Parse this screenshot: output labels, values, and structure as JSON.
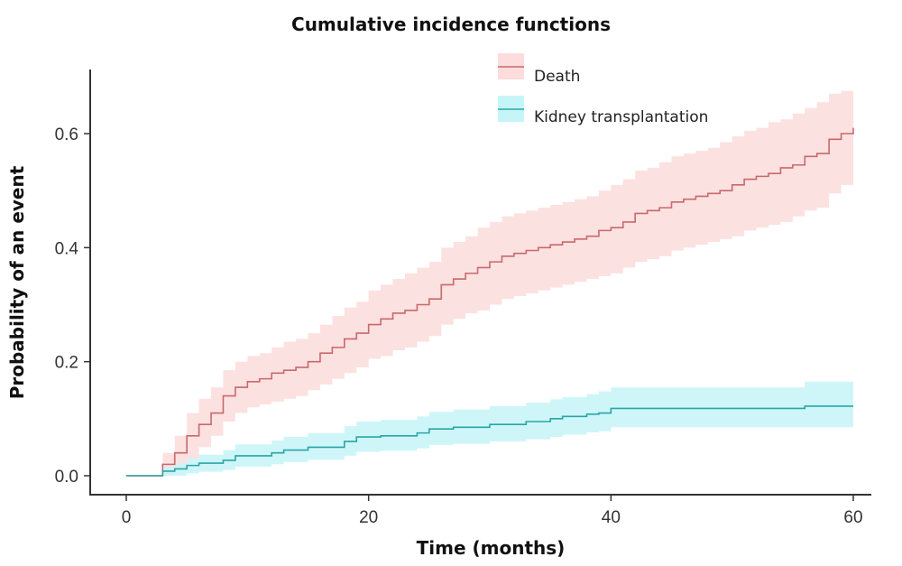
{
  "chart_data": {
    "type": "line",
    "subtype": "step",
    "title": "Cumulative incidence functions",
    "xlabel": "Time (months)",
    "ylabel": "Probability of an event",
    "xlim": [
      -3,
      62
    ],
    "ylim": [
      -0.04,
      0.7
    ],
    "xticks": [
      0,
      20,
      40,
      60
    ],
    "xtick_labels": [
      "0",
      "20",
      "40",
      "60"
    ],
    "yticks": [
      0.0,
      0.2,
      0.4,
      0.6
    ],
    "ytick_labels": [
      "0.0",
      "0.2",
      "0.4",
      "0.6"
    ],
    "grid": false,
    "legend": {
      "position": "top-right",
      "entries": [
        "Death",
        "Kidney transplantation"
      ]
    },
    "series": [
      {
        "name": "Death",
        "color": "#c8696b",
        "band_color": "#fcdcdc",
        "x": [
          0,
          3,
          4,
          5,
          6,
          7,
          8,
          9,
          10,
          11,
          12,
          13,
          14,
          15,
          16,
          17,
          18,
          19,
          20,
          21,
          22,
          23,
          24,
          25,
          26,
          27,
          28,
          29,
          30,
          31,
          32,
          33,
          34,
          35,
          36,
          37,
          38,
          39,
          40,
          41,
          42,
          43,
          44,
          45,
          46,
          47,
          48,
          49,
          50,
          51,
          52,
          53,
          54,
          55,
          56,
          57,
          58,
          59,
          60
        ],
        "y": [
          0,
          0.02,
          0.04,
          0.07,
          0.09,
          0.11,
          0.14,
          0.155,
          0.165,
          0.17,
          0.18,
          0.185,
          0.19,
          0.2,
          0.215,
          0.225,
          0.24,
          0.25,
          0.265,
          0.275,
          0.285,
          0.29,
          0.3,
          0.31,
          0.335,
          0.345,
          0.355,
          0.365,
          0.375,
          0.385,
          0.39,
          0.395,
          0.4,
          0.405,
          0.41,
          0.415,
          0.42,
          0.43,
          0.435,
          0.445,
          0.46,
          0.465,
          0.47,
          0.48,
          0.485,
          0.49,
          0.495,
          0.5,
          0.51,
          0.52,
          0.525,
          0.53,
          0.54,
          0.545,
          0.56,
          0.565,
          0.59,
          0.6,
          0.61
        ],
        "lower": [
          0,
          0.0,
          0.01,
          0.03,
          0.05,
          0.07,
          0.095,
          0.11,
          0.12,
          0.125,
          0.13,
          0.135,
          0.14,
          0.15,
          0.16,
          0.17,
          0.18,
          0.19,
          0.205,
          0.21,
          0.22,
          0.225,
          0.235,
          0.245,
          0.265,
          0.275,
          0.285,
          0.29,
          0.3,
          0.31,
          0.315,
          0.32,
          0.325,
          0.33,
          0.335,
          0.34,
          0.345,
          0.35,
          0.355,
          0.365,
          0.375,
          0.38,
          0.385,
          0.395,
          0.4,
          0.405,
          0.41,
          0.415,
          0.42,
          0.43,
          0.435,
          0.44,
          0.445,
          0.455,
          0.465,
          0.47,
          0.495,
          0.51,
          0.52
        ],
        "upper": [
          0,
          0.04,
          0.07,
          0.11,
          0.135,
          0.155,
          0.185,
          0.2,
          0.21,
          0.215,
          0.225,
          0.235,
          0.24,
          0.25,
          0.265,
          0.28,
          0.295,
          0.305,
          0.325,
          0.335,
          0.345,
          0.355,
          0.365,
          0.375,
          0.4,
          0.41,
          0.42,
          0.435,
          0.445,
          0.455,
          0.46,
          0.465,
          0.47,
          0.475,
          0.48,
          0.485,
          0.49,
          0.5,
          0.51,
          0.52,
          0.535,
          0.54,
          0.55,
          0.56,
          0.565,
          0.57,
          0.575,
          0.585,
          0.595,
          0.605,
          0.61,
          0.62,
          0.625,
          0.635,
          0.645,
          0.655,
          0.67,
          0.675,
          0.68
        ]
      },
      {
        "name": "Kidney transplantation",
        "color": "#2aa5a5",
        "band_color": "#c6f5f8",
        "x": [
          0,
          3,
          4,
          5,
          6,
          8,
          9,
          12,
          13,
          15,
          18,
          19,
          21,
          24,
          25,
          27,
          30,
          33,
          35,
          36,
          38,
          39,
          40,
          48,
          55,
          56,
          60
        ],
        "y": [
          0,
          0.008,
          0.012,
          0.018,
          0.022,
          0.027,
          0.035,
          0.04,
          0.045,
          0.05,
          0.06,
          0.068,
          0.07,
          0.075,
          0.082,
          0.085,
          0.09,
          0.095,
          0.1,
          0.104,
          0.108,
          0.11,
          0.118,
          0.118,
          0.118,
          0.122,
          0.122
        ],
        "lower": [
          0,
          0.0,
          0.0,
          0.004,
          0.007,
          0.01,
          0.016,
          0.02,
          0.024,
          0.028,
          0.035,
          0.042,
          0.044,
          0.048,
          0.054,
          0.056,
          0.06,
          0.064,
          0.068,
          0.072,
          0.076,
          0.078,
          0.085,
          0.085,
          0.085,
          0.085,
          0.085
        ],
        "upper": [
          0,
          0.016,
          0.022,
          0.03,
          0.037,
          0.045,
          0.055,
          0.062,
          0.068,
          0.075,
          0.087,
          0.095,
          0.098,
          0.104,
          0.112,
          0.116,
          0.122,
          0.128,
          0.134,
          0.138,
          0.143,
          0.148,
          0.155,
          0.155,
          0.155,
          0.165,
          0.165
        ]
      }
    ]
  }
}
